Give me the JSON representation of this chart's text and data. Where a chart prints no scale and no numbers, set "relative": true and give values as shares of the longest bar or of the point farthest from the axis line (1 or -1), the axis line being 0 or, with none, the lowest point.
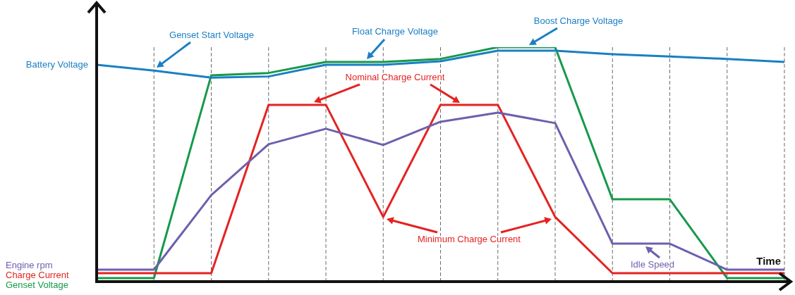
{
  "chart_data": {
    "type": "line",
    "relative": true,
    "xlabel": "Time",
    "categories": [
      null,
      null,
      null,
      null,
      null,
      null,
      null,
      null,
      null,
      null,
      null,
      null,
      null
    ],
    "grid": "x",
    "marker": "none",
    "line_style": "solid",
    "series": [
      {
        "name": "Battery Voltage",
        "color": "#1a7fc4",
        "values": [
          0.925,
          0.9,
          0.87,
          0.875,
          0.925,
          0.925,
          0.94,
          0.985,
          0.985,
          0.97,
          0.96,
          0.95,
          0.937
        ]
      },
      {
        "name": "Engine rpm",
        "color": "#6e5fae",
        "values": [
          0.051,
          0.051,
          0.369,
          0.586,
          0.652,
          0.583,
          0.682,
          0.721,
          0.676,
          0.162,
          0.162,
          0.051,
          0.051
        ]
      },
      {
        "name": "Charge Current",
        "color": "#e32322",
        "values": [
          0.036,
          0.036,
          0.036,
          0.754,
          0.754,
          0.276,
          0.754,
          0.754,
          0.276,
          0.036,
          0.036,
          0.036,
          0.036
        ]
      },
      {
        "name": "Genset Voltage",
        "color": "#16994a",
        "values": [
          0.015,
          0.015,
          0.88,
          0.89,
          0.937,
          0.937,
          0.95,
          1,
          1,
          0.351,
          0.351,
          0.015,
          0.015
        ]
      }
    ],
    "annotations": [
      "Genset Start Voltage",
      "Float Charge Voltage",
      "Boost Charge Voltage",
      "Nominal Charge Current",
      "Minimum Charge Current",
      "Idle Speed"
    ]
  }
}
